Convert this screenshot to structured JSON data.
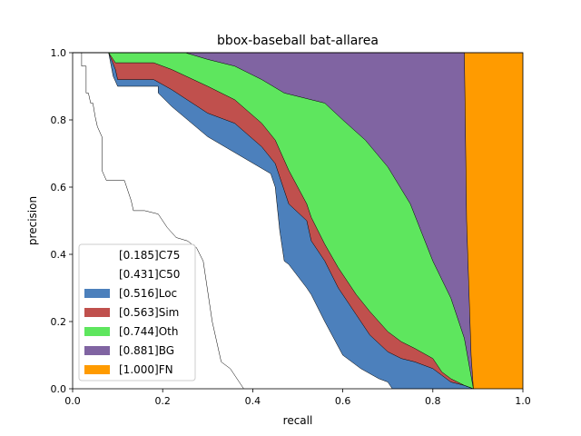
{
  "chart_data": {
    "type": "area",
    "title": "bbox-baseball bat-allarea",
    "xlabel": "recall",
    "ylabel": "precision",
    "xlim": [
      0,
      1
    ],
    "ylim": [
      0,
      1
    ],
    "xticks": [
      "0.0",
      "0.2",
      "0.4",
      "0.6",
      "0.8",
      "1.0"
    ],
    "yticks": [
      "0.0",
      "0.2",
      "0.4",
      "0.6",
      "0.8",
      "1.0"
    ],
    "legend_position": "lower-left",
    "grid": false,
    "series": [
      {
        "name": "[0.185]C75",
        "color": "#ffffff",
        "points": [
          [
            0,
            1
          ],
          [
            0.02,
            1
          ],
          [
            0.02,
            0.96
          ],
          [
            0.03,
            0.96
          ],
          [
            0.03,
            0.88
          ],
          [
            0.035,
            0.88
          ],
          [
            0.04,
            0.85
          ],
          [
            0.045,
            0.85
          ],
          [
            0.05,
            0.81
          ],
          [
            0.055,
            0.78
          ],
          [
            0.065,
            0.75
          ],
          [
            0.065,
            0.65
          ],
          [
            0.075,
            0.62
          ],
          [
            0.115,
            0.62
          ],
          [
            0.13,
            0.56
          ],
          [
            0.135,
            0.53
          ],
          [
            0.16,
            0.53
          ],
          [
            0.19,
            0.52
          ],
          [
            0.21,
            0.48
          ],
          [
            0.23,
            0.45
          ],
          [
            0.255,
            0.44
          ],
          [
            0.275,
            0.42
          ],
          [
            0.29,
            0.38
          ],
          [
            0.31,
            0.2
          ],
          [
            0.33,
            0.08
          ],
          [
            0.35,
            0.06
          ],
          [
            0.37,
            0.02
          ],
          [
            0.38,
            0.0
          ],
          [
            1,
            0
          ]
        ]
      },
      {
        "name": "[0.431]C50",
        "color": "#ffffff",
        "points": [
          [
            0,
            1
          ],
          [
            0.08,
            1
          ],
          [
            0.09,
            0.93
          ],
          [
            0.1,
            0.9
          ],
          [
            0.19,
            0.9
          ],
          [
            0.19,
            0.88
          ],
          [
            0.22,
            0.84
          ],
          [
            0.3,
            0.75
          ],
          [
            0.44,
            0.64
          ],
          [
            0.45,
            0.6
          ],
          [
            0.46,
            0.47
          ],
          [
            0.47,
            0.38
          ],
          [
            0.48,
            0.37
          ],
          [
            0.52,
            0.3
          ],
          [
            0.53,
            0.28
          ],
          [
            0.56,
            0.2
          ],
          [
            0.6,
            0.1
          ],
          [
            0.64,
            0.06
          ],
          [
            0.68,
            0.03
          ],
          [
            0.7,
            0.02
          ],
          [
            0.71,
            0.0
          ],
          [
            1,
            0
          ]
        ]
      },
      {
        "name": "[0.516]Loc",
        "color": "#4c80bc",
        "points": [
          [
            0,
            1
          ],
          [
            0.08,
            1
          ],
          [
            0.095,
            0.95
          ],
          [
            0.1,
            0.92
          ],
          [
            0.18,
            0.92
          ],
          [
            0.22,
            0.89
          ],
          [
            0.3,
            0.82
          ],
          [
            0.36,
            0.79
          ],
          [
            0.42,
            0.72
          ],
          [
            0.45,
            0.67
          ],
          [
            0.47,
            0.59
          ],
          [
            0.48,
            0.55
          ],
          [
            0.52,
            0.5
          ],
          [
            0.53,
            0.44
          ],
          [
            0.56,
            0.38
          ],
          [
            0.59,
            0.3
          ],
          [
            0.63,
            0.22
          ],
          [
            0.66,
            0.16
          ],
          [
            0.7,
            0.11
          ],
          [
            0.73,
            0.09
          ],
          [
            0.76,
            0.08
          ],
          [
            0.8,
            0.06
          ],
          [
            0.82,
            0.04
          ],
          [
            0.84,
            0.02
          ],
          [
            0.87,
            0.01
          ],
          [
            0.89,
            0.0
          ],
          [
            1,
            0
          ]
        ]
      },
      {
        "name": "[0.563]Sim",
        "color": "#c0504d",
        "points": [
          [
            0,
            1
          ],
          [
            0.08,
            1
          ],
          [
            0.095,
            0.97
          ],
          [
            0.18,
            0.97
          ],
          [
            0.22,
            0.95
          ],
          [
            0.3,
            0.9
          ],
          [
            0.36,
            0.86
          ],
          [
            0.42,
            0.79
          ],
          [
            0.45,
            0.74
          ],
          [
            0.47,
            0.68
          ],
          [
            0.48,
            0.65
          ],
          [
            0.52,
            0.55
          ],
          [
            0.53,
            0.51
          ],
          [
            0.56,
            0.43
          ],
          [
            0.59,
            0.36
          ],
          [
            0.63,
            0.28
          ],
          [
            0.66,
            0.23
          ],
          [
            0.7,
            0.17
          ],
          [
            0.73,
            0.14
          ],
          [
            0.76,
            0.12
          ],
          [
            0.8,
            0.09
          ],
          [
            0.82,
            0.05
          ],
          [
            0.84,
            0.03
          ],
          [
            0.87,
            0.01
          ],
          [
            0.89,
            0.0
          ],
          [
            1,
            0
          ]
        ]
      },
      {
        "name": "[0.744]Oth",
        "color": "#5ee65e",
        "points": [
          [
            0,
            1
          ],
          [
            0.08,
            1
          ],
          [
            0.25,
            1
          ],
          [
            0.3,
            0.98
          ],
          [
            0.36,
            0.96
          ],
          [
            0.42,
            0.92
          ],
          [
            0.47,
            0.88
          ],
          [
            0.5,
            0.87
          ],
          [
            0.56,
            0.85
          ],
          [
            0.6,
            0.8
          ],
          [
            0.65,
            0.74
          ],
          [
            0.7,
            0.66
          ],
          [
            0.75,
            0.55
          ],
          [
            0.8,
            0.38
          ],
          [
            0.84,
            0.27
          ],
          [
            0.87,
            0.15
          ],
          [
            0.89,
            0.0
          ],
          [
            1,
            0
          ]
        ]
      },
      {
        "name": "[0.881]BG",
        "color": "#8064a2",
        "points": [
          [
            0,
            1
          ],
          [
            0.87,
            1
          ],
          [
            0.875,
            0.5
          ],
          [
            0.885,
            0.1
          ],
          [
            0.89,
            0.0
          ],
          [
            1,
            0
          ]
        ]
      },
      {
        "name": "[1.000]FN",
        "color": "#ff9b00",
        "points": [
          [
            0,
            1
          ],
          [
            1,
            1
          ],
          [
            1,
            0
          ]
        ]
      }
    ]
  }
}
